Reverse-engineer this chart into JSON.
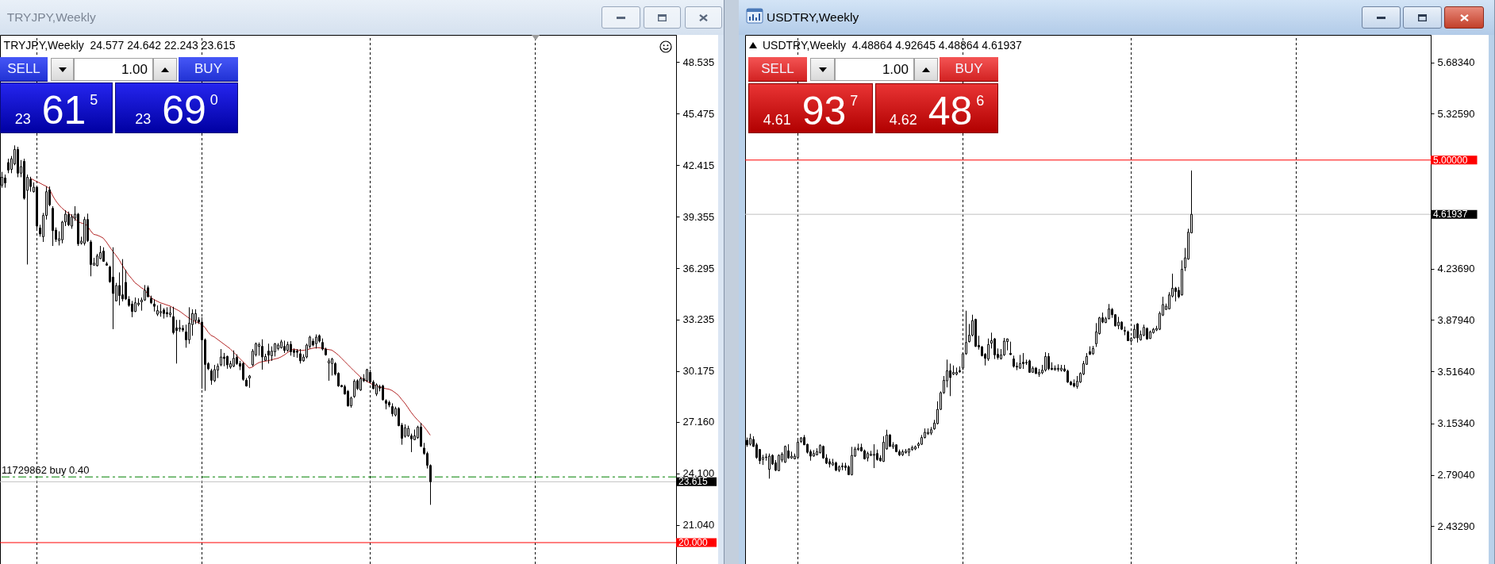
{
  "chart_data": [
    {
      "type": "candlestick",
      "title": "TRYJPY,Weekly",
      "subtitle": "TRYJPY,Weekly  24.577 24.642 22.243 23.615",
      "categories": [
        null,
        null,
        null,
        null,
        null,
        null,
        null,
        null,
        null,
        null,
        null,
        null,
        null,
        null,
        null,
        null,
        null,
        null,
        null,
        null,
        null,
        null,
        null,
        null,
        null,
        null,
        null,
        null,
        null,
        null,
        null,
        null,
        null,
        null,
        null,
        null,
        null,
        null,
        null,
        null,
        null,
        null,
        null,
        null,
        null,
        null,
        null,
        null,
        null,
        null,
        null,
        null,
        null,
        null,
        null,
        null,
        null,
        null,
        null,
        null,
        null,
        null,
        null,
        null,
        null,
        null,
        null,
        null,
        null,
        null,
        null,
        null,
        null,
        null,
        null,
        null,
        null,
        null,
        null,
        null,
        null,
        null,
        null,
        null,
        null,
        null,
        null,
        null,
        null,
        null,
        null,
        null,
        null,
        null,
        null,
        null,
        null,
        null,
        null,
        null,
        null,
        null,
        null,
        null,
        null,
        null,
        null,
        null,
        null,
        null,
        null,
        null,
        null,
        null,
        null,
        null,
        null,
        null,
        null,
        null,
        null,
        null,
        null,
        null,
        null,
        null,
        null,
        null,
        null,
        null,
        null,
        null,
        null,
        null,
        null,
        null,
        null,
        null,
        null,
        null,
        null,
        null,
        null,
        null,
        null,
        null,
        null,
        null,
        null,
        null,
        null,
        null,
        null,
        null,
        null,
        null,
        null,
        null,
        null,
        null,
        null,
        null,
        null,
        null,
        null,
        null,
        null,
        null,
        null,
        null,
        null,
        null,
        null,
        null,
        null,
        null,
        null,
        null,
        null,
        null,
        null,
        null,
        null,
        null,
        null,
        null,
        null,
        null,
        null,
        null,
        null,
        null,
        null,
        null,
        null,
        null,
        null,
        null,
        null,
        null,
        null,
        null,
        null,
        null,
        null,
        null,
        null,
        null,
        null,
        null,
        null,
        null,
        null
      ],
      "ohlc": [
        [
          41.22,
          42.01,
          41.07,
          41.69
        ],
        [
          41.65,
          41.85,
          41.07,
          41.35
        ],
        [
          42.56,
          42.79,
          41.93,
          42.12
        ],
        [
          42.16,
          42.95,
          41.93,
          42.79
        ],
        [
          42.48,
          43.58,
          42.4,
          43.34
        ],
        [
          43.34,
          43.5,
          41.69,
          41.93
        ],
        [
          41.93,
          42.71,
          41.69,
          42.32
        ],
        [
          42.63,
          42.79,
          40.36,
          40.44
        ],
        [
          40.91,
          41.85,
          36.51,
          41.69
        ],
        [
          41.57,
          41.72,
          40.83,
          41.14
        ],
        [
          40.83,
          41.38,
          40.78,
          41.1
        ],
        [
          41.1,
          41.14,
          38.63,
          38.79
        ],
        [
          38.68,
          38.87,
          38.16,
          38.32
        ],
        [
          38.16,
          39.57,
          37.85,
          39.42
        ],
        [
          39.42,
          41.14,
          39.18,
          40.83
        ],
        [
          40.94,
          41.14,
          39.97,
          40.05
        ],
        [
          39.84,
          39.97,
          37.61,
          38.52
        ],
        [
          38.55,
          38.71,
          37.85,
          38.0
        ],
        [
          37.93,
          38.48,
          37.64,
          38.04
        ],
        [
          37.97,
          39.1,
          37.77,
          39.03
        ],
        [
          39.03,
          39.73,
          38.79,
          39.5
        ],
        [
          39.47,
          39.65,
          38.79,
          38.87
        ],
        [
          38.79,
          39.5,
          38.63,
          39.34
        ],
        [
          39.26,
          39.97,
          39.1,
          39.5
        ],
        [
          39.5,
          39.57,
          37.61,
          37.74
        ],
        [
          37.77,
          38.16,
          37.69,
          37.9
        ],
        [
          37.77,
          39.34,
          37.64,
          39.18
        ],
        [
          39.18,
          39.53,
          37.85,
          37.93
        ],
        [
          37.85,
          37.96,
          35.81,
          36.51
        ],
        [
          36.47,
          36.91,
          36.44,
          36.59
        ],
        [
          36.44,
          37.14,
          36.39,
          37.02
        ],
        [
          36.86,
          37.61,
          36.83,
          37.22
        ],
        [
          37.3,
          37.53,
          36.67,
          36.7
        ],
        [
          36.55,
          36.67,
          36.44,
          36.47
        ],
        [
          36.36,
          36.44,
          35.42,
          35.49
        ],
        [
          35.76,
          37.53,
          32.67,
          34.79
        ],
        [
          34.35,
          35.42,
          34.32,
          35.26
        ],
        [
          35.26,
          36.04,
          34.08,
          34.66
        ],
        [
          34.71,
          36.83,
          34.32,
          34.47
        ],
        [
          35.45,
          36.2,
          34.4,
          34.47
        ],
        [
          34.44,
          34.63,
          34.0,
          34.08
        ],
        [
          34.16,
          34.35,
          33.38,
          33.72
        ],
        [
          33.72,
          34.55,
          33.69,
          34.24
        ],
        [
          34.13,
          34.5,
          34.03,
          34.22
        ],
        [
          34.29,
          34.55,
          33.77,
          34.4
        ],
        [
          34.4,
          35.29,
          34.35,
          34.98
        ],
        [
          35.13,
          35.26,
          34.55,
          34.6
        ],
        [
          34.5,
          34.66,
          34.16,
          34.24
        ],
        [
          34.16,
          34.44,
          33.72,
          34.03
        ],
        [
          33.56,
          34.08,
          33.45,
          33.77
        ],
        [
          33.64,
          34.16,
          33.41,
          33.72
        ],
        [
          33.81,
          33.92,
          33.3,
          33.6
        ],
        [
          33.66,
          33.97,
          33.38,
          33.58
        ],
        [
          33.53,
          34.0,
          33.38,
          33.64
        ],
        [
          33.41,
          34.0,
          32.36,
          32.47
        ],
        [
          32.75,
          33.22,
          30.63,
          32.59
        ],
        [
          32.67,
          33.22,
          32.51,
          32.75
        ],
        [
          32.72,
          32.91,
          32.51,
          32.62
        ],
        [
          32.51,
          32.94,
          31.57,
          32.04
        ],
        [
          32.04,
          33.97,
          31.8,
          33.03
        ],
        [
          32.94,
          33.85,
          32.28,
          33.6
        ],
        [
          33.19,
          33.85,
          32.98,
          33.6
        ],
        [
          33.22,
          33.38,
          32.98,
          33.09
        ],
        [
          33.09,
          33.38,
          29.14,
          32.04
        ],
        [
          32.04,
          32.12,
          29.01,
          30.58
        ],
        [
          30.63,
          30.71,
          30.24,
          30.32
        ],
        [
          30.2,
          30.32,
          29.37,
          29.64
        ],
        [
          29.61,
          30.55,
          29.53,
          30.27
        ],
        [
          30.24,
          30.63,
          29.77,
          30.47
        ],
        [
          30.55,
          31.49,
          30.47,
          31.02
        ],
        [
          31.02,
          31.26,
          30.47,
          30.93
        ],
        [
          31.05,
          31.1,
          30.32,
          30.55
        ],
        [
          30.42,
          30.79,
          30.32,
          30.63
        ],
        [
          30.47,
          31.41,
          30.42,
          30.94
        ],
        [
          30.99,
          31.18,
          30.55,
          30.63
        ],
        [
          30.63,
          30.79,
          30.24,
          30.47
        ],
        [
          30.63,
          30.71,
          29.61,
          29.69
        ],
        [
          29.64,
          29.77,
          29.26,
          29.3
        ],
        [
          29.77,
          29.95,
          29.19,
          29.89
        ],
        [
          30.55,
          31.49,
          30.47,
          31.37
        ],
        [
          31.15,
          31.88,
          31.05,
          31.81
        ],
        [
          31.65,
          31.88,
          31.1,
          31.76
        ],
        [
          31.65,
          32.07,
          30.27,
          31.02
        ],
        [
          30.82,
          31.21,
          30.79,
          31.05
        ],
        [
          31.37,
          31.81,
          30.63,
          31.13
        ],
        [
          31.1,
          31.65,
          30.79,
          31.37
        ],
        [
          31.33,
          31.84,
          31.05,
          31.81
        ],
        [
          31.52,
          31.84,
          31.41,
          31.73
        ],
        [
          31.57,
          32.04,
          31.52,
          31.92
        ],
        [
          31.65,
          31.99,
          31.26,
          31.41
        ],
        [
          31.41,
          31.93,
          31.33,
          31.76
        ],
        [
          31.77,
          31.96,
          31.1,
          31.33
        ],
        [
          31.41,
          31.52,
          31.02,
          31.29
        ],
        [
          31.37,
          31.49,
          30.97,
          31.3
        ],
        [
          31.21,
          31.49,
          30.63,
          30.79
        ],
        [
          30.79,
          31.18,
          30.74,
          31.02
        ],
        [
          31.02,
          31.81,
          30.94,
          31.73
        ],
        [
          31.65,
          32.28,
          31.52,
          32.2
        ],
        [
          31.96,
          32.12,
          31.65,
          31.73
        ],
        [
          31.81,
          32.36,
          31.52,
          32.2
        ],
        [
          32.28,
          32.36,
          31.88,
          31.96
        ],
        [
          31.88,
          32.12,
          31.41,
          31.49
        ],
        [
          31.49,
          31.57,
          31.1,
          31.15
        ],
        [
          30.66,
          30.94,
          29.61,
          30.79
        ],
        [
          30.63,
          30.97,
          29.92,
          30.9
        ],
        [
          30.63,
          30.71,
          29.92,
          30.0
        ],
        [
          30.05,
          30.11,
          29.25,
          29.3
        ],
        [
          29.33,
          29.37,
          29.22,
          29.25
        ],
        [
          29.26,
          29.37,
          28.79,
          28.82
        ],
        [
          28.98,
          29.06,
          28.07,
          28.12
        ],
        [
          28.12,
          28.67,
          28.01,
          28.59
        ],
        [
          28.67,
          29.69,
          28.59,
          29.58
        ],
        [
          29.61,
          29.69,
          29.06,
          29.14
        ],
        [
          29.06,
          29.84,
          29.01,
          29.73
        ],
        [
          29.73,
          30.0,
          29.53,
          29.61
        ],
        [
          29.61,
          30.32,
          29.53,
          30.27
        ],
        [
          30.11,
          30.27,
          29.45,
          29.53
        ],
        [
          29.53,
          29.64,
          29.11,
          29.14
        ],
        [
          28.82,
          29.45,
          28.7,
          29.37
        ],
        [
          29.26,
          29.37,
          28.98,
          29.17
        ],
        [
          29.3,
          29.37,
          28.43,
          28.48
        ],
        [
          28.43,
          28.51,
          27.91,
          28.27
        ],
        [
          28.32,
          28.43,
          28.04,
          28.17
        ],
        [
          28.07,
          28.27,
          27.49,
          27.65
        ],
        [
          27.57,
          28.07,
          27.49,
          27.96
        ],
        [
          27.96,
          28.04,
          26.91,
          26.94
        ],
        [
          26.97,
          27.1,
          25.81,
          26.19
        ],
        [
          26.31,
          27.02,
          26.23,
          26.82
        ],
        [
          26.34,
          26.94,
          26.28,
          26.78
        ],
        [
          26.34,
          26.47,
          25.37,
          26.16
        ],
        [
          26.11,
          26.71,
          26.08,
          26.34
        ],
        [
          26.23,
          26.94,
          26.16,
          26.86
        ],
        [
          26.86,
          27.1,
          25.68,
          25.72
        ],
        [
          25.61,
          25.92,
          25.21,
          25.29
        ],
        [
          25.29,
          25.4,
          24.4,
          24.59
        ],
        [
          24.577,
          24.642,
          22.243,
          23.615
        ],
        null,
        null,
        null,
        null,
        null,
        null,
        null,
        null,
        null,
        null,
        null,
        null,
        null,
        null,
        null,
        null,
        null,
        null,
        null,
        null,
        null,
        null,
        null,
        null,
        null,
        null,
        null,
        null,
        null,
        null,
        null,
        null,
        null,
        null,
        null,
        null,
        null,
        null,
        null,
        null,
        null,
        null,
        null,
        null,
        null,
        null,
        null,
        null,
        null,
        null,
        null,
        null,
        null,
        null,
        null,
        null,
        null,
        null,
        null,
        null,
        null,
        null,
        null,
        null,
        null,
        null,
        null,
        null,
        null,
        null,
        null,
        null,
        null,
        null,
        null,
        null,
        null
      ],
      "series": [
        {
          "type": "line",
          "color": "#b42828",
          "values": [
            null,
            null,
            null,
            null,
            null,
            null,
            null,
            null,
            null,
            41.63,
            41.54,
            41.44,
            41.35,
            41.25,
            41.16,
            41.03,
            40.63,
            40.31,
            40.06,
            39.86,
            39.7,
            39.56,
            39.42,
            39.25,
            39.06,
            38.98,
            38.93,
            38.81,
            38.52,
            38.3,
            38.26,
            38.18,
            38.08,
            37.85,
            37.57,
            37.3,
            37.06,
            36.8,
            36.47,
            36.17,
            35.89,
            35.67,
            35.43,
            35.29,
            35.13,
            35.02,
            34.77,
            34.55,
            34.43,
            34.33,
            34.24,
            34.18,
            34.11,
            34.05,
            33.94,
            33.85,
            33.75,
            33.61,
            33.47,
            33.33,
            33.22,
            33.12,
            33.05,
            32.95,
            32.79,
            32.51,
            32.3,
            32.21,
            32.07,
            31.93,
            31.79,
            31.65,
            31.51,
            31.32,
            31.13,
            30.94,
            30.75,
            30.57,
            30.36,
            30.42,
            30.57,
            30.68,
            30.74,
            30.77,
            30.8,
            30.85,
            30.9,
            30.94,
            31.02,
            31.13,
            31.27,
            31.4,
            31.49,
            31.45,
            31.41,
            31.41,
            31.45,
            31.49,
            31.54,
            31.57,
            31.57,
            31.54,
            31.49,
            31.46,
            31.43,
            31.3,
            31.15,
            30.96,
            30.77,
            30.58,
            30.39,
            30.2,
            30.02,
            29.84,
            29.7,
            29.58,
            29.48,
            29.37,
            29.31,
            29.25,
            29.19,
            29.14,
            29.11,
            29.03,
            28.9,
            28.75,
            28.51,
            28.29,
            28.02,
            27.74,
            27.5,
            27.29,
            27.1,
            26.9,
            26.66,
            26.39,
            null,
            null,
            null,
            null,
            null,
            null,
            null,
            null,
            null,
            null,
            null,
            null,
            null,
            null,
            null,
            null,
            null,
            null,
            null,
            null,
            null,
            null,
            null,
            null,
            null,
            null,
            null,
            null,
            null,
            null,
            null,
            null,
            null,
            null,
            null,
            null,
            null,
            null,
            null,
            null,
            null,
            null,
            null,
            null,
            null,
            null,
            null,
            null,
            null,
            null,
            null,
            null,
            null,
            null,
            null,
            null,
            null,
            null,
            null,
            null,
            null,
            null,
            null,
            null,
            null,
            null,
            null,
            null,
            null,
            null,
            null,
            null,
            null,
            null,
            null,
            null,
            null
          ]
        }
      ],
      "ylim": [
        18.73,
        50.14
      ],
      "yticks": [
        48.535,
        45.475,
        42.415,
        39.355,
        36.295,
        33.235,
        30.175,
        {
          "value": 27.16,
          "label": "27.160"
        },
        {
          "value": 24.1,
          "label": "24.100"
        },
        {
          "value": 21.04,
          "label": "21.040"
        }
      ],
      "ref_lines": [
        {
          "axis": "y",
          "value": 23.9,
          "label": "11729862 buy 0.40",
          "color": "#008000",
          "line_style": "dashed"
        },
        {
          "axis": "y",
          "value": 23.615,
          "label": "23.615",
          "color": "#c0c0c0"
        },
        {
          "axis": "y",
          "value": 20,
          "label": "20.000",
          "color": "#ff0000"
        }
      ],
      "annotations": [
        "SELL",
        "1.00",
        "BUY",
        "23 61$^{5}$",
        "23 69$^{0}$"
      ],
      "tick_labels": "y"
    },
    {
      "type": "candlestick",
      "title": "USDTRY,Weekly",
      "subtitle": "USDTRY,Weekly  4.48864 4.92645 4.48864 4.61937",
      "categories": [
        null,
        null,
        null,
        null,
        null,
        null,
        null,
        null,
        null,
        null,
        null,
        null,
        null,
        null,
        null,
        null,
        null,
        null,
        null,
        null,
        null,
        null,
        null,
        null,
        null,
        null,
        null,
        null,
        null,
        null,
        null,
        null,
        null,
        null,
        null,
        null,
        null,
        null,
        null,
        null,
        null,
        null,
        null,
        null,
        null,
        null,
        null,
        null,
        null,
        null,
        null,
        null,
        null,
        null,
        null,
        null,
        null,
        null,
        null,
        null,
        null,
        null,
        null,
        null,
        null,
        null,
        null,
        null,
        null,
        null,
        null,
        null,
        null,
        null,
        null,
        null,
        null,
        null,
        null,
        null,
        null,
        null,
        null,
        null,
        null,
        null,
        null,
        null,
        null,
        null,
        null,
        null,
        null,
        null,
        null,
        null,
        null,
        null,
        null,
        null,
        null,
        null,
        null,
        null,
        null,
        null,
        null,
        null,
        null,
        null,
        null,
        null,
        null,
        null,
        null,
        null,
        null,
        null,
        null,
        null,
        null,
        null,
        null,
        null,
        null,
        null,
        null,
        null,
        null,
        null,
        null,
        null,
        null,
        null,
        null,
        null,
        null,
        null,
        null,
        null,
        null,
        null,
        null,
        null,
        null,
        null,
        null,
        null,
        null,
        null,
        null,
        null,
        null,
        null,
        null,
        null,
        null,
        null,
        null,
        null,
        null,
        null,
        null,
        null,
        null,
        null,
        null,
        null,
        null,
        null,
        null,
        null,
        null,
        null,
        null,
        null,
        null,
        null,
        null,
        null,
        null,
        null,
        null,
        null,
        null,
        null,
        null,
        null,
        null,
        null,
        null,
        null,
        null,
        null,
        null,
        null,
        null,
        null,
        null,
        null,
        null,
        null,
        null,
        null,
        null,
        null,
        null,
        null,
        null,
        null,
        null,
        null,
        null,
        null,
        null,
        null
      ],
      "ohlc": [
        [
          3.034,
          3.053,
          2.988,
          3.002
        ],
        [
          3.006,
          3.08,
          2.997,
          3.047
        ],
        [
          3.04,
          3.062,
          2.988,
          2.991
        ],
        [
          3.002,
          3.015,
          2.904,
          2.913
        ],
        [
          2.969,
          2.973,
          2.867,
          2.891
        ],
        [
          2.899,
          2.932,
          2.861,
          2.913
        ],
        [
          2.913,
          2.941,
          2.891,
          2.917
        ],
        [
          2.83,
          2.941,
          2.765,
          2.923
        ],
        [
          2.928,
          2.936,
          2.861,
          2.867
        ],
        [
          2.876,
          2.895,
          2.817,
          2.824
        ],
        [
          2.821,
          2.936,
          2.817,
          2.928
        ],
        [
          2.895,
          2.95,
          2.88,
          2.937
        ],
        [
          2.88,
          2.997,
          2.876,
          2.991
        ],
        [
          2.96,
          3.006,
          2.904,
          2.91
        ],
        [
          2.91,
          2.954,
          2.904,
          2.923
        ],
        [
          2.904,
          2.941,
          2.9,
          2.923
        ],
        [
          2.913,
          3.043,
          2.91,
          3.021
        ],
        [
          3.025,
          3.056,
          3.015,
          3.051
        ],
        [
          3.053,
          3.071,
          3.001,
          3.002
        ],
        [
          3.006,
          3.01,
          2.941,
          2.95
        ],
        [
          2.954,
          2.969,
          2.891,
          2.923
        ],
        [
          2.923,
          2.965,
          2.919,
          2.941
        ],
        [
          2.932,
          2.978,
          2.928,
          2.954
        ],
        [
          2.947,
          3.006,
          2.941,
          2.997
        ],
        [
          2.991,
          2.997,
          2.904,
          2.91
        ],
        [
          2.91,
          2.936,
          2.867,
          2.873
        ],
        [
          2.884,
          2.904,
          2.843,
          2.867
        ],
        [
          2.861,
          2.904,
          2.854,
          2.876
        ],
        [
          2.876,
          2.884,
          2.817,
          2.824
        ],
        [
          2.824,
          2.858,
          2.811,
          2.848
        ],
        [
          2.847,
          2.876,
          2.824,
          2.854
        ],
        [
          2.854,
          2.876,
          2.821,
          2.843
        ],
        [
          2.848,
          2.858,
          2.789,
          2.793
        ],
        [
          2.793,
          2.988,
          2.787,
          2.928
        ],
        [
          2.923,
          2.988,
          2.917,
          2.973
        ],
        [
          2.969,
          3.01,
          2.96,
          2.978
        ],
        [
          2.984,
          3.01,
          2.954,
          2.96
        ],
        [
          2.96,
          2.969,
          2.899,
          2.904
        ],
        [
          2.91,
          2.954,
          2.886,
          2.941
        ],
        [
          2.928,
          2.96,
          2.923,
          2.936
        ],
        [
          2.928,
          3.006,
          2.839,
          2.936
        ],
        [
          2.941,
          2.969,
          2.891,
          2.899
        ],
        [
          2.91,
          2.928,
          2.884,
          2.891
        ],
        [
          2.886,
          3.062,
          2.882,
          3.021
        ],
        [
          2.973,
          3.108,
          2.969,
          3.071
        ],
        [
          3.071,
          3.077,
          2.988,
          2.991
        ],
        [
          2.988,
          3.021,
          2.973,
          3.002
        ],
        [
          3.002,
          3.006,
          2.95,
          2.954
        ],
        [
          2.954,
          2.969,
          2.923,
          2.932
        ],
        [
          2.932,
          2.969,
          2.923,
          2.954
        ],
        [
          2.947,
          2.973,
          2.941,
          2.958
        ],
        [
          2.95,
          2.978,
          2.923,
          2.973
        ],
        [
          2.969,
          2.997,
          2.96,
          2.984
        ],
        [
          2.973,
          2.997,
          2.965,
          2.988
        ],
        [
          2.997,
          3.021,
          2.978,
          3.01
        ],
        [
          3.006,
          3.071,
          3.002,
          3.053
        ],
        [
          3.053,
          3.117,
          3.047,
          3.09
        ],
        [
          3.08,
          3.117,
          3.071,
          3.09
        ],
        [
          3.084,
          3.127,
          3.071,
          3.108
        ],
        [
          3.114,
          3.177,
          3.108,
          3.155
        ],
        [
          3.151,
          3.307,
          3.145,
          3.251
        ],
        [
          3.251,
          3.377,
          3.247,
          3.368
        ],
        [
          3.368,
          3.485,
          3.359,
          3.455
        ],
        [
          3.451,
          3.6,
          3.405,
          3.522
        ],
        [
          3.522,
          3.572,
          3.344,
          3.474
        ],
        [
          3.498,
          3.559,
          3.492,
          3.511
        ],
        [
          3.498,
          3.544,
          3.489,
          3.511
        ],
        [
          3.522,
          3.553,
          3.507,
          3.516
        ],
        [
          3.54,
          3.646,
          3.526,
          3.641
        ],
        [
          3.641,
          3.943,
          3.633,
          3.72
        ],
        [
          3.726,
          3.85,
          3.72,
          3.771
        ],
        [
          3.771,
          3.915,
          3.763,
          3.874
        ],
        [
          3.882,
          3.887,
          3.689,
          3.693
        ],
        [
          3.7,
          3.767,
          3.67,
          3.689
        ],
        [
          3.689,
          3.696,
          3.622,
          3.628
        ],
        [
          3.637,
          3.646,
          3.559,
          3.609
        ],
        [
          3.604,
          3.748,
          3.591,
          3.706
        ],
        [
          3.715,
          3.789,
          3.678,
          3.733
        ],
        [
          3.745,
          3.752,
          3.604,
          3.633
        ],
        [
          3.637,
          3.678,
          3.6,
          3.615
        ],
        [
          3.607,
          3.674,
          3.6,
          3.633
        ],
        [
          3.633,
          3.752,
          3.626,
          3.73
        ],
        [
          3.726,
          3.748,
          3.665,
          3.745
        ],
        [
          3.644,
          3.726,
          3.633,
          3.635
        ],
        [
          3.605,
          3.628,
          3.544,
          3.553
        ],
        [
          3.553,
          3.581,
          3.526,
          3.548
        ],
        [
          3.54,
          3.633,
          3.535,
          3.572
        ],
        [
          3.581,
          3.646,
          3.535,
          3.572
        ],
        [
          3.576,
          3.6,
          3.563,
          3.581
        ],
        [
          3.591,
          3.6,
          3.507,
          3.511
        ],
        [
          3.511,
          3.553,
          3.507,
          3.54
        ],
        [
          3.54,
          3.548,
          3.498,
          3.503
        ],
        [
          3.498,
          3.535,
          3.479,
          3.511
        ],
        [
          3.507,
          3.563,
          3.498,
          3.526
        ],
        [
          3.526,
          3.652,
          3.516,
          3.622
        ],
        [
          3.622,
          3.646,
          3.526,
          3.535
        ],
        [
          3.539,
          3.581,
          3.526,
          3.531
        ],
        [
          3.529,
          3.559,
          3.522,
          3.539
        ],
        [
          3.531,
          3.567,
          3.516,
          3.539
        ],
        [
          3.526,
          3.563,
          3.516,
          3.54
        ],
        [
          3.535,
          3.563,
          3.514,
          3.52
        ],
        [
          3.52,
          3.529,
          3.437,
          3.442
        ],
        [
          3.442,
          3.451,
          3.418,
          3.424
        ],
        [
          3.433,
          3.461,
          3.405,
          3.414
        ],
        [
          3.411,
          3.485,
          3.396,
          3.448
        ],
        [
          3.442,
          3.511,
          3.437,
          3.503
        ],
        [
          3.498,
          3.591,
          3.492,
          3.572
        ],
        [
          3.567,
          3.646,
          3.563,
          3.622
        ],
        [
          3.656,
          3.693,
          3.633,
          3.637
        ],
        [
          3.641,
          3.696,
          3.633,
          3.678
        ],
        [
          3.711,
          3.856,
          3.689,
          3.795
        ],
        [
          3.782,
          3.9,
          3.776,
          3.893
        ],
        [
          3.893,
          3.93,
          3.856,
          3.863
        ],
        [
          3.86,
          3.9,
          3.856,
          3.887
        ],
        [
          3.887,
          3.99,
          3.882,
          3.956
        ],
        [
          3.952,
          3.962,
          3.893,
          3.915
        ],
        [
          3.915,
          3.919,
          3.832,
          3.837
        ],
        [
          3.837,
          3.9,
          3.813,
          3.863
        ],
        [
          3.863,
          3.869,
          3.807,
          3.813
        ],
        [
          3.804,
          3.832,
          3.771,
          3.8
        ],
        [
          3.795,
          3.804,
          3.73,
          3.733
        ],
        [
          3.73,
          3.758,
          3.72,
          3.748
        ],
        [
          3.752,
          3.845,
          3.748,
          3.813
        ],
        [
          3.85,
          3.856,
          3.72,
          3.752
        ],
        [
          3.739,
          3.804,
          3.733,
          3.776
        ],
        [
          3.771,
          3.845,
          3.763,
          3.826
        ],
        [
          3.819,
          3.826,
          3.739,
          3.745
        ],
        [
          3.748,
          3.804,
          3.745,
          3.795
        ],
        [
          3.789,
          3.822,
          3.782,
          3.813
        ],
        [
          3.807,
          3.837,
          3.8,
          3.819
        ],
        [
          3.813,
          3.938,
          3.807,
          3.925
        ],
        [
          3.912,
          4.041,
          3.906,
          3.986
        ],
        [
          3.952,
          3.993,
          3.949,
          3.975
        ],
        [
          3.956,
          4.073,
          3.952,
          4.054
        ],
        [
          4.045,
          4.203,
          4.036,
          4.101
        ],
        [
          4.101,
          4.11,
          4.008,
          4.077
        ],
        [
          4.086,
          4.11,
          4.03,
          4.041
        ],
        [
          4.054,
          4.296,
          4.049,
          4.234
        ],
        [
          4.245,
          4.383,
          4.221,
          4.314
        ],
        [
          4.305,
          4.518,
          4.301,
          4.494
        ],
        [
          4.48864,
          4.92645,
          4.48864,
          4.61937
        ],
        null,
        null,
        null,
        null,
        null,
        null,
        null,
        null,
        null,
        null,
        null,
        null,
        null,
        null,
        null,
        null,
        null,
        null,
        null,
        null,
        null,
        null,
        null,
        null,
        null,
        null,
        null,
        null,
        null,
        null,
        null,
        null,
        null,
        null,
        null,
        null,
        null,
        null,
        null,
        null,
        null,
        null,
        null,
        null,
        null,
        null,
        null,
        null,
        null,
        null,
        null,
        null,
        null,
        null,
        null,
        null,
        null,
        null,
        null,
        null,
        null,
        null,
        null,
        null,
        null,
        null,
        null,
        null,
        null,
        null,
        null,
        null,
        null,
        null,
        null
      ],
      "ylim": [
        2.166,
        5.878
      ],
      "yticks": [
        {
          "value": 5.6834,
          "label": "5.68340"
        },
        {
          "value": 5.3259,
          "label": "5.32590"
        },
        {
          "value": 4.2369,
          "label": "4.23690"
        },
        {
          "value": 3.8794,
          "label": "3.87940"
        },
        {
          "value": 3.5164,
          "label": "3.51640"
        },
        {
          "value": 3.1534,
          "label": "3.15340"
        },
        {
          "value": 2.7904,
          "label": "2.79040"
        },
        {
          "value": 2.4329,
          "label": "2.43290"
        }
      ],
      "ref_lines": [
        {
          "axis": "y",
          "value": 5,
          "label": "5.00000",
          "color": "#ff0000"
        },
        {
          "axis": "y",
          "value": 4.61937,
          "label": "4.61937",
          "color": "#c0c0c0"
        }
      ],
      "annotations": [
        "SELL",
        "1.00",
        "BUY",
        "4.61 93$^{7}$",
        "4.62 48$^{6}$"
      ],
      "tick_labels": "y"
    }
  ]
}
